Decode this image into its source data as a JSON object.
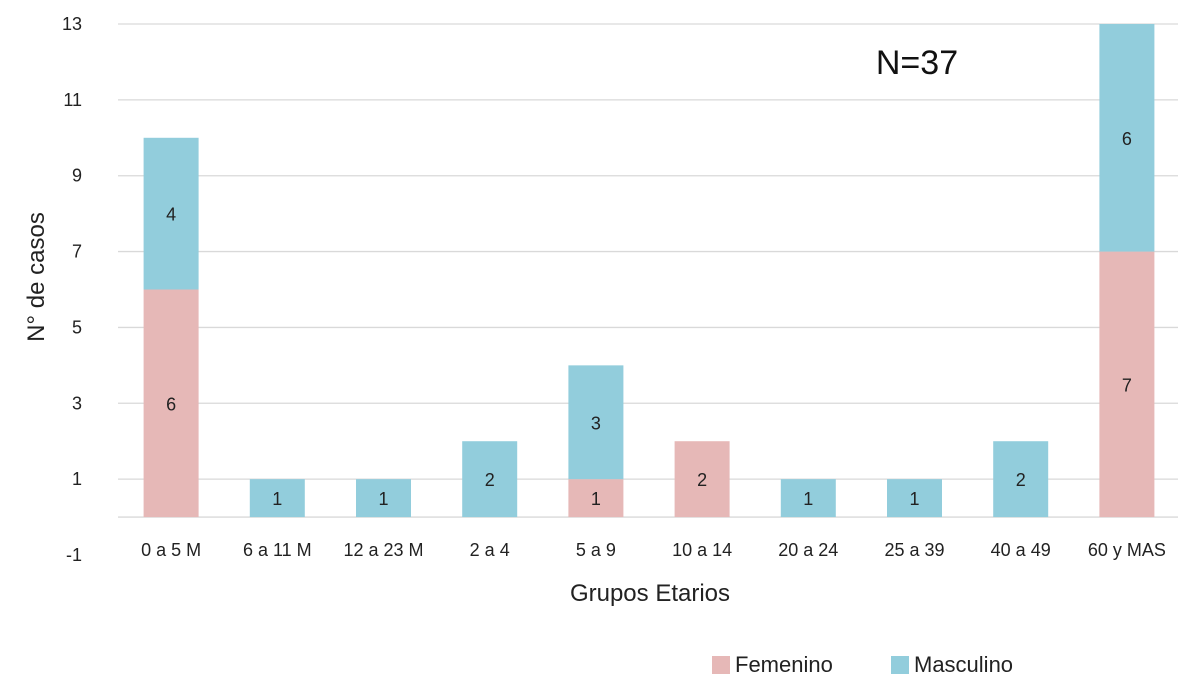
{
  "chart_data": {
    "type": "bar",
    "stacked": true,
    "categories": [
      "0 a 5 M",
      "6 a 11 M",
      "12 a 23 M",
      "2 a 4",
      "5 a 9",
      "10 a 14",
      "20 a 24",
      "25 a 39",
      "40 a 49",
      "60 y MAS"
    ],
    "series": [
      {
        "name": "Femenino",
        "color": "#e6b8b7",
        "values": [
          6,
          0,
          0,
          0,
          1,
          2,
          0,
          0,
          0,
          7
        ]
      },
      {
        "name": "Masculino",
        "color": "#92cddc",
        "values": [
          4,
          1,
          1,
          2,
          3,
          0,
          1,
          1,
          2,
          6
        ]
      }
    ],
    "xlabel": "Grupos Etarios",
    "ylabel": "N° de casos",
    "ylim": [
      -1,
      13
    ],
    "yticks": [
      -1,
      1,
      3,
      5,
      7,
      9,
      11,
      13
    ],
    "annotation": "N=37",
    "grid": true,
    "legend_position": "bottom-right"
  }
}
